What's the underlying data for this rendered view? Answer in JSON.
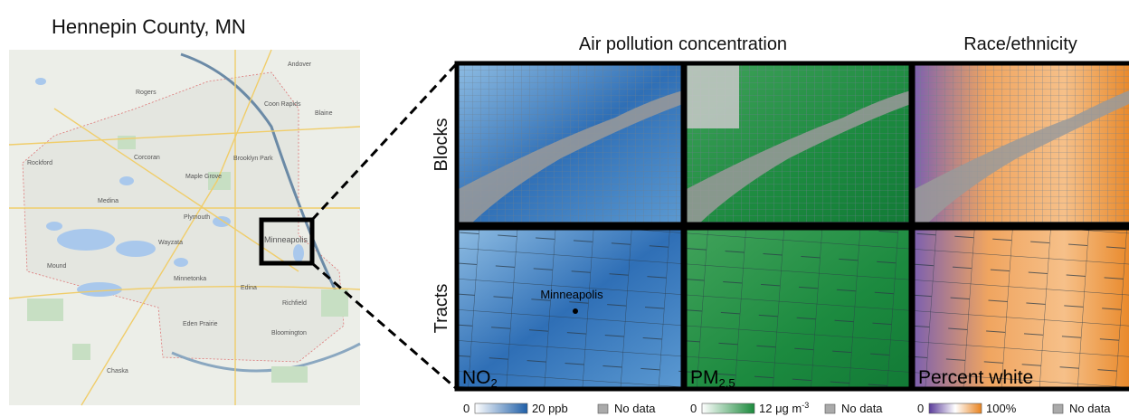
{
  "title": "Hennepin County, MN",
  "map_labels": [
    "Andover",
    "Rogers",
    "Coon Rapids",
    "Blaine",
    "Rockford",
    "Corcoran",
    "Brooklyn Park",
    "Maple Grove",
    "Medina",
    "Plymouth",
    "Minneapolis",
    "Wayzata",
    "Minnetonka",
    "Mound",
    "Edina",
    "Richfield",
    "Eden Prairie",
    "Bloomington",
    "Chaska"
  ],
  "columns": {
    "pollution": "Air pollution concentration",
    "race": "Race/ethnicity"
  },
  "rows": {
    "blocks": "Blocks",
    "tracts": "Tracts"
  },
  "inset_label": "Minneapolis",
  "panels": [
    {
      "label": "NO",
      "label_sub": "2"
    },
    {
      "label": "PM",
      "label_sub": "2.5"
    },
    {
      "label": "Percent white"
    }
  ],
  "legends": [
    {
      "min": "0",
      "max": "20 ppb",
      "no_data": "No data"
    },
    {
      "min": "0",
      "max": "12 μg m",
      "max_sup": "-3",
      "no_data": "No data"
    },
    {
      "min": "0",
      "max": "100%",
      "no_data": "No data"
    }
  ]
}
